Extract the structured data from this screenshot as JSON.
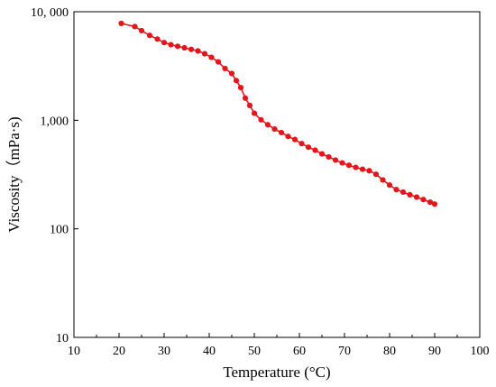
{
  "chart_data": {
    "type": "line",
    "xlabel": "Temperature (°C)",
    "ylabel": "Viscosity（mPa·s)",
    "xlim": [
      10,
      100
    ],
    "ylim": [
      10,
      10000
    ],
    "yscale": "log",
    "grid": false,
    "x_ticks": [
      "10",
      "20",
      "30",
      "40",
      "50",
      "60",
      "70",
      "80",
      "90",
      "100"
    ],
    "y_ticks": [
      "10",
      "100",
      "1,000",
      "10, 000"
    ],
    "series": [
      {
        "color": "#e8141c",
        "x": [
          20.5,
          23.5,
          25,
          26.8,
          28.5,
          30,
          31.5,
          33,
          34.5,
          36,
          37.5,
          39,
          40.5,
          42,
          43.5,
          45,
          46,
          47,
          48,
          49,
          50,
          51.5,
          53,
          54.5,
          56,
          57.5,
          59,
          60.5,
          62,
          63.5,
          65,
          66.5,
          68,
          69.5,
          71,
          72.5,
          74,
          75.5,
          77,
          78.5,
          80,
          81.5,
          83,
          84.5,
          86,
          87.5,
          89,
          90
        ],
        "y": [
          7800,
          7300,
          6700,
          6050,
          5600,
          5200,
          4970,
          4800,
          4650,
          4500,
          4350,
          4100,
          3800,
          3450,
          3000,
          2700,
          2320,
          2000,
          1600,
          1370,
          1160,
          1010,
          910,
          830,
          770,
          710,
          665,
          610,
          565,
          530,
          490,
          460,
          430,
          405,
          385,
          368,
          354,
          343,
          318,
          282,
          253,
          230,
          218,
          206,
          196,
          186,
          176,
          169
        ]
      }
    ]
  }
}
